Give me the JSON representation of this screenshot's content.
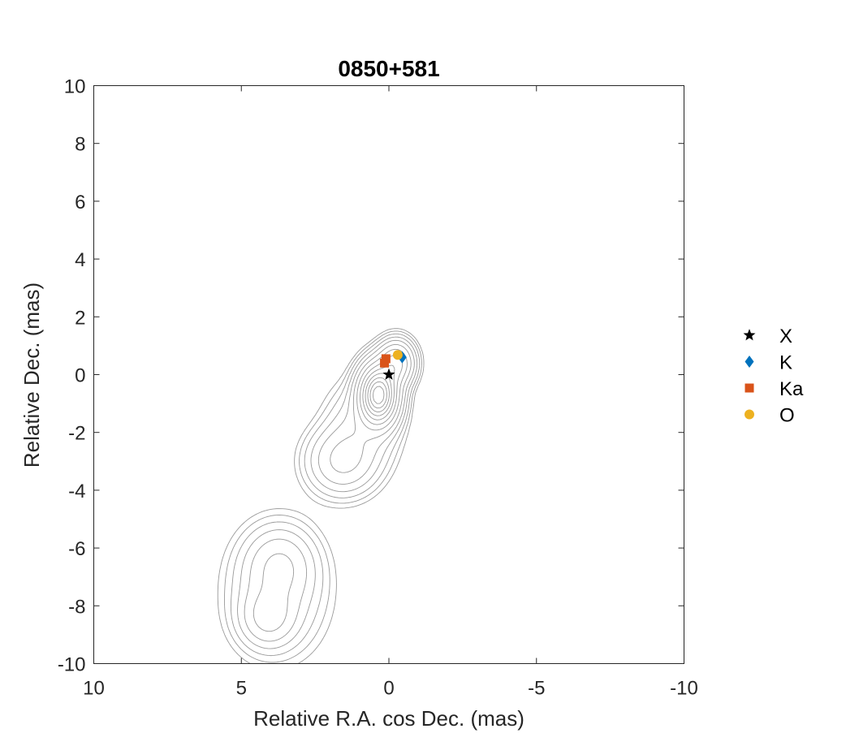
{
  "chart_data": {
    "type": "scatter",
    "title": "0850+581",
    "xlabel": "Relative R.A. cos Dec. (mas)",
    "ylabel": "Relative Dec. (mas)",
    "xlim": [
      10,
      -10
    ],
    "ylim": [
      -10,
      10
    ],
    "x_ticks": [
      10,
      5,
      0,
      -5,
      -10
    ],
    "y_ticks": [
      -10,
      -8,
      -6,
      -4,
      -2,
      0,
      2,
      4,
      6,
      8,
      10
    ],
    "grid": false,
    "legend_position": "outside-right",
    "contour_color": "#9a9a9a",
    "series": [
      {
        "name": "X",
        "marker": "star",
        "color": "#000000",
        "points": [
          [
            0.0,
            0.0
          ]
        ]
      },
      {
        "name": "K",
        "marker": "diamond",
        "color": "#0072BD",
        "points": [
          [
            -0.45,
            0.6
          ]
        ]
      },
      {
        "name": "Ka",
        "marker": "square",
        "color": "#D95319",
        "points": [
          [
            0.15,
            0.4
          ],
          [
            0.1,
            0.55
          ]
        ]
      },
      {
        "name": "O",
        "marker": "circle",
        "color": "#EDB120",
        "points": [
          [
            -0.3,
            0.68
          ]
        ]
      }
    ],
    "contour_components": [
      {
        "name": "core",
        "cx": 0.35,
        "cy": -0.7,
        "sx": 0.38,
        "sy": 0.6,
        "peak": 12
      },
      {
        "name": "core-north",
        "cx": -0.25,
        "cy": 0.4,
        "sx": 0.35,
        "sy": 0.45,
        "peak": 4
      },
      {
        "name": "jet-middle",
        "cx": 1.6,
        "cy": -3.0,
        "sx": 0.7,
        "sy": 0.7,
        "peak": 1.6
      },
      {
        "name": "jet-bridge",
        "cx": 0.9,
        "cy": -1.8,
        "sx": 0.7,
        "sy": 0.9,
        "peak": 1.0
      },
      {
        "name": "lobe-upper",
        "cx": 3.7,
        "cy": -6.6,
        "sx": 0.7,
        "sy": 0.8,
        "peak": 1.2
      },
      {
        "name": "lobe-lower",
        "cx": 4.1,
        "cy": -8.4,
        "sx": 0.55,
        "sy": 0.6,
        "peak": 1.4
      },
      {
        "name": "lobe-halo",
        "cx": 3.8,
        "cy": -7.6,
        "sx": 1.0,
        "sy": 1.3,
        "peak": 0.8
      }
    ],
    "contour_levels": [
      0.12,
      0.2,
      0.33,
      0.55,
      0.9,
      1.5,
      2.4,
      3.6,
      5.0,
      6.5,
      8.0,
      9.5,
      11.0
    ]
  }
}
